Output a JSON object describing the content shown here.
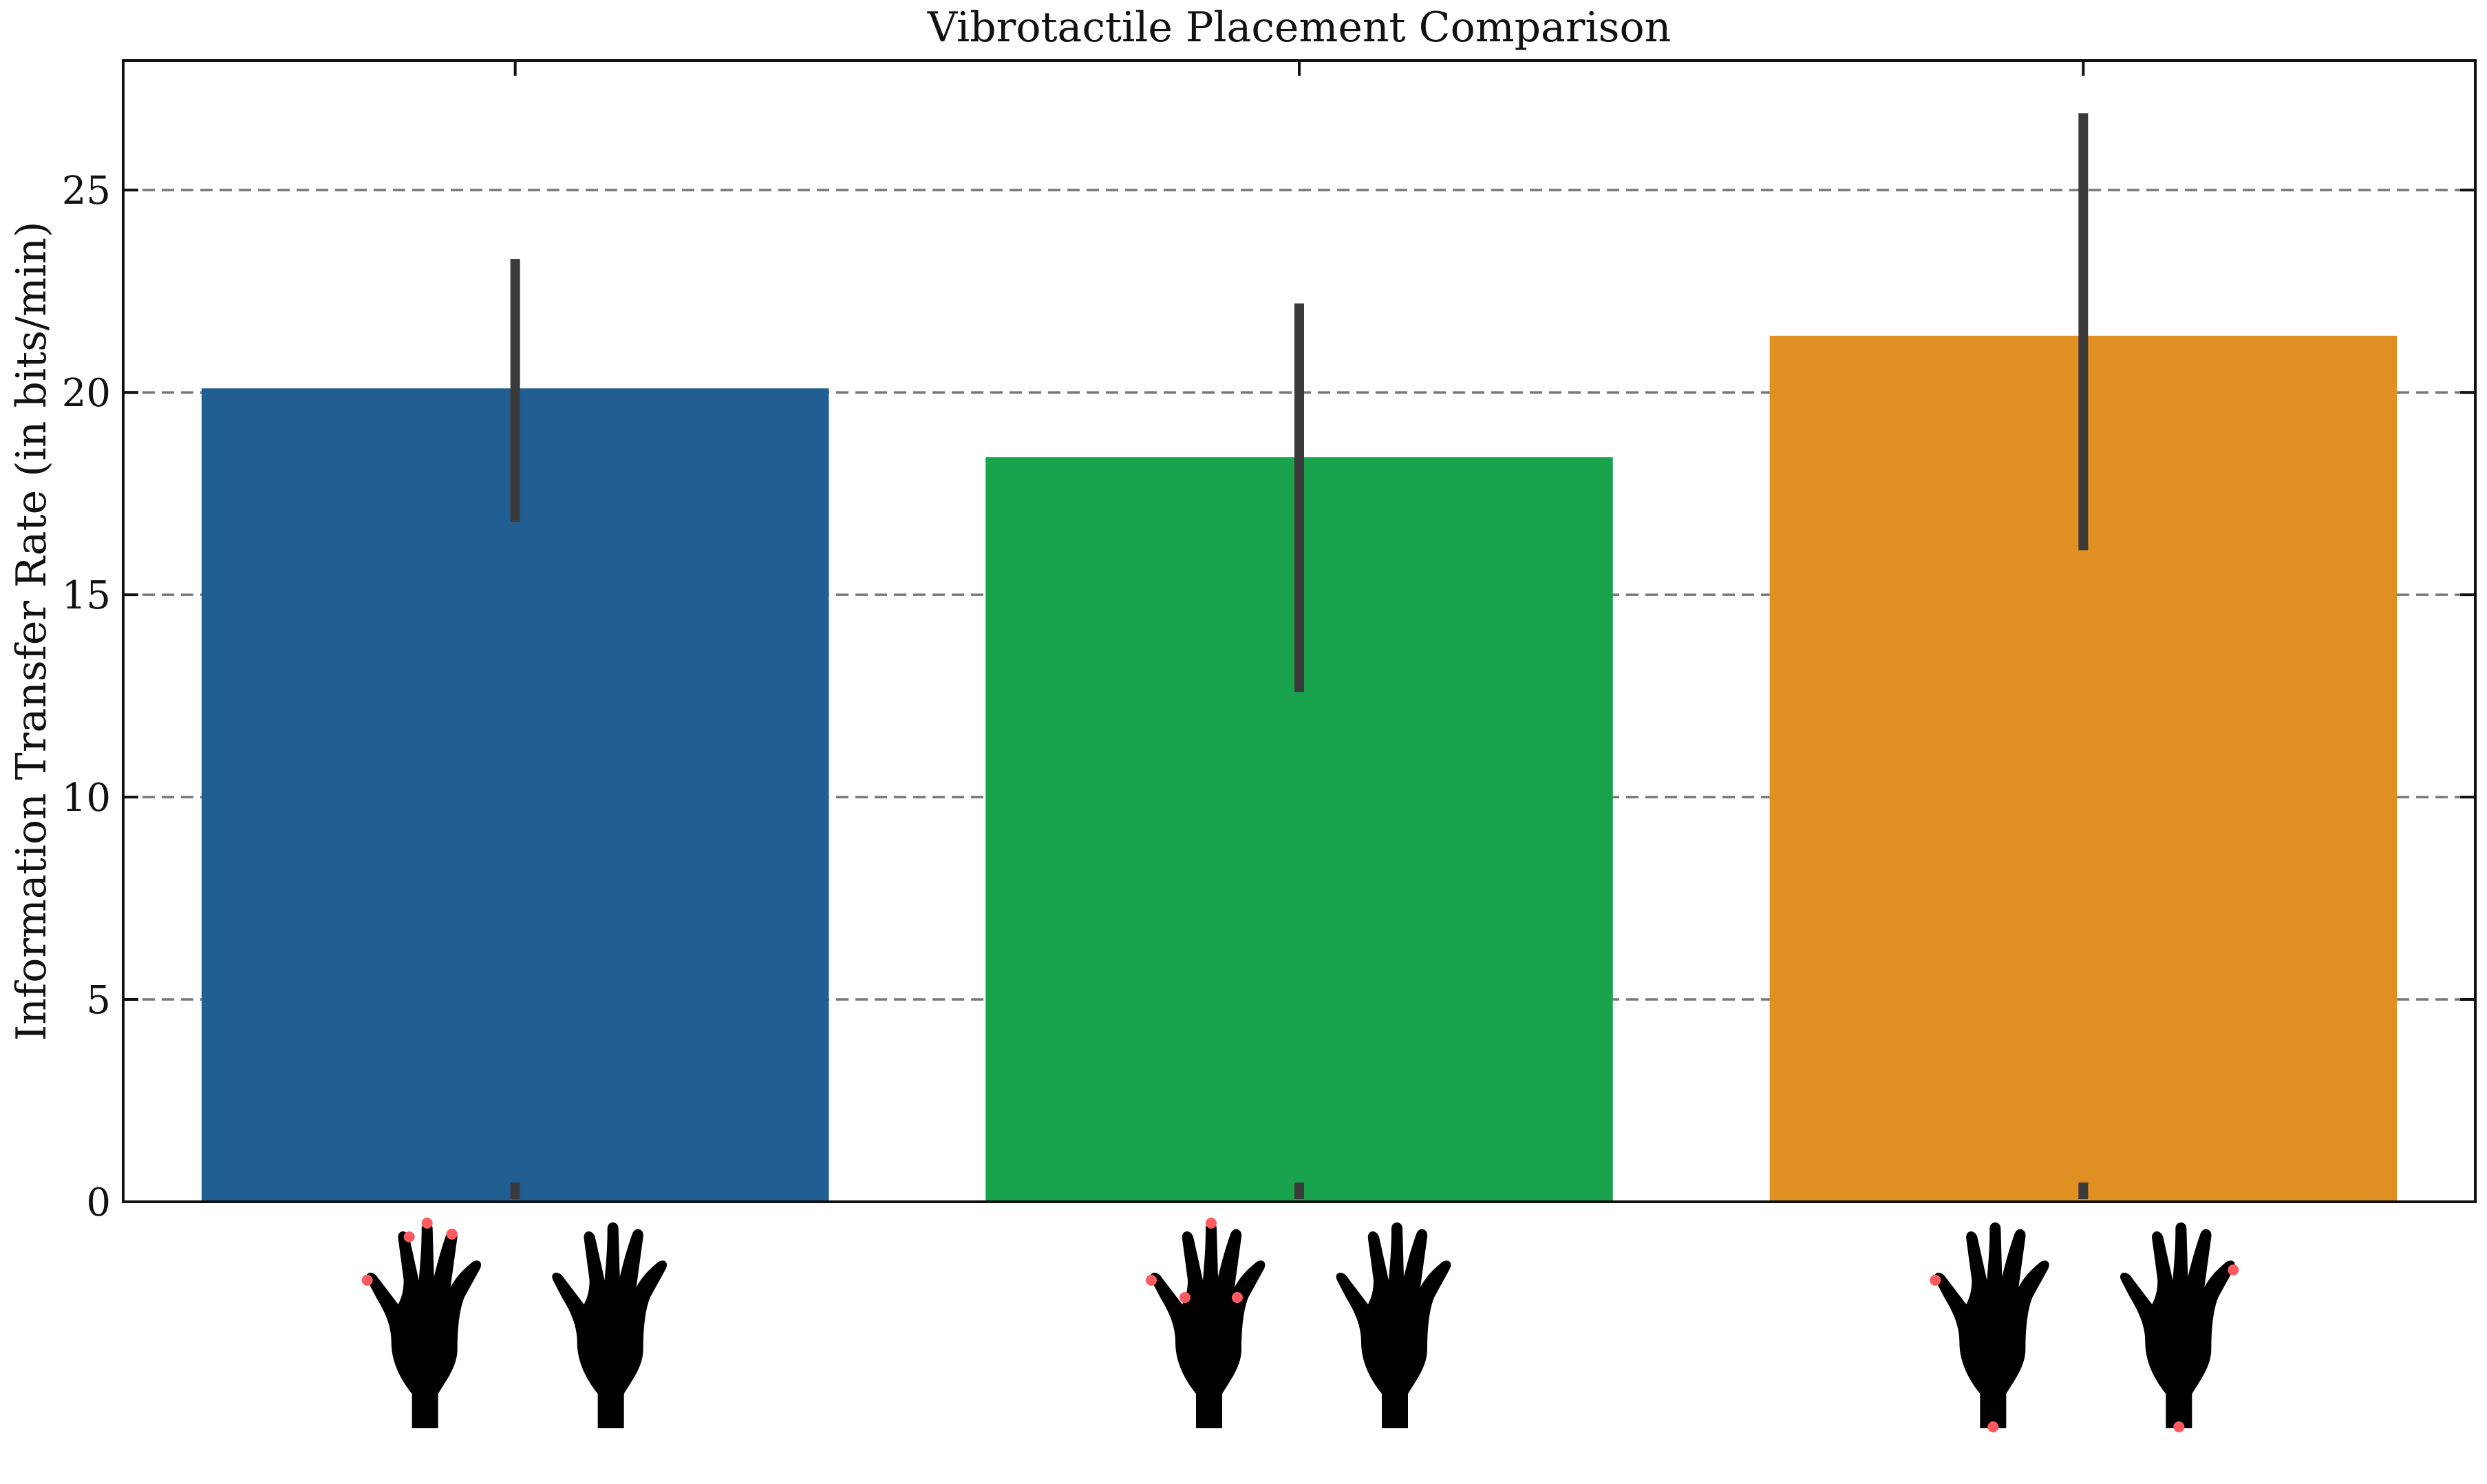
{
  "chart_data": {
    "type": "bar",
    "title": "Vibrotactile Placement Comparison",
    "xlabel": "",
    "ylabel": "Information Transfer Rate (in bits/min)",
    "ylim": [
      0,
      28.2
    ],
    "yticks": [
      0,
      5,
      10,
      15,
      20,
      25
    ],
    "ytick_labels": [
      "0",
      "5",
      "10",
      "15",
      "20",
      "25"
    ],
    "grid": "y, dashed",
    "categories": [
      "",
      "",
      ""
    ],
    "values": [
      20.1,
      18.4,
      21.4
    ],
    "error_low": [
      16.8,
      12.6,
      16.1
    ],
    "error_high": [
      23.3,
      22.2,
      26.9
    ],
    "colors": [
      "#215e92",
      "#1aa34d",
      "#e08f22"
    ],
    "category_icons": [
      {
        "icon": "two-hands-icon",
        "markers": "fingertips"
      },
      {
        "icon": "two-hands-icon",
        "markers": "fingertips-and-knuckles"
      },
      {
        "icon": "two-hands-icon",
        "markers": "fingertips-and-wrists"
      }
    ]
  }
}
